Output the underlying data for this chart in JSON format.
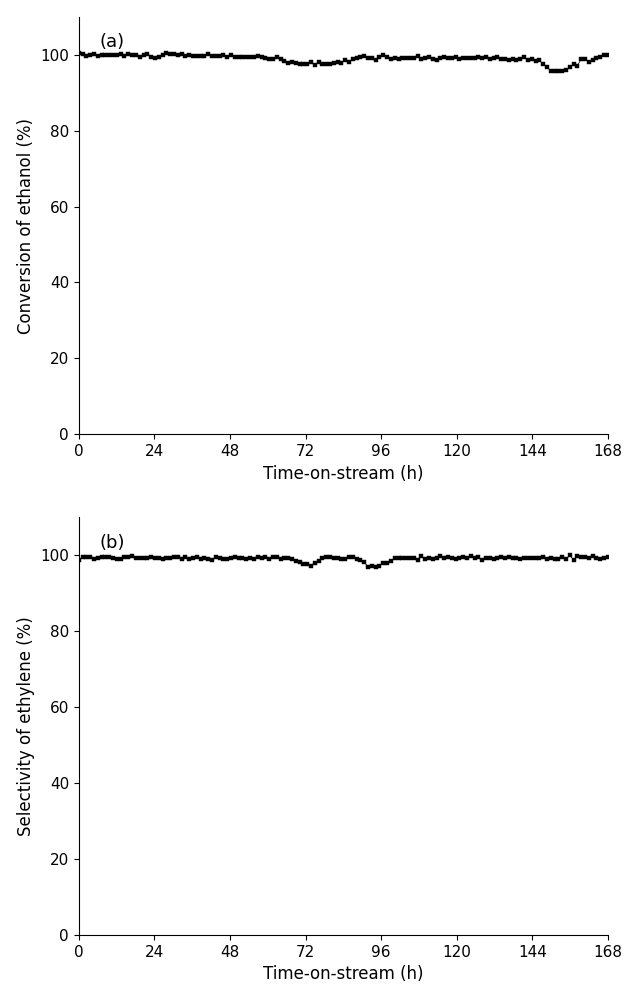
{
  "panel_a": {
    "label": "(a)",
    "ylabel": "Conversion of ethanol (%)",
    "xlabel": "Time-on-stream (h)",
    "xlim": [
      0,
      168
    ],
    "ylim": [
      0,
      110
    ],
    "yticks": [
      0,
      20,
      40,
      60,
      80,
      100
    ],
    "xticks": [
      0,
      24,
      48,
      72,
      96,
      120,
      144,
      168
    ]
  },
  "panel_b": {
    "label": "(b)",
    "ylabel": "Selectivity of ethylene (%)",
    "xlabel": "Time-on-stream (h)",
    "xlim": [
      0,
      168
    ],
    "ylim": [
      0,
      110
    ],
    "yticks": [
      0,
      20,
      40,
      60,
      80,
      100
    ],
    "xticks": [
      0,
      24,
      48,
      72,
      96,
      120,
      144,
      168
    ]
  },
  "marker": "s",
  "marker_size": 3,
  "line_color": "#000000",
  "line_width": 0.5,
  "bg_color": "#ffffff",
  "label_fontsize": 12,
  "tick_fontsize": 11,
  "panel_label_fontsize": 13
}
